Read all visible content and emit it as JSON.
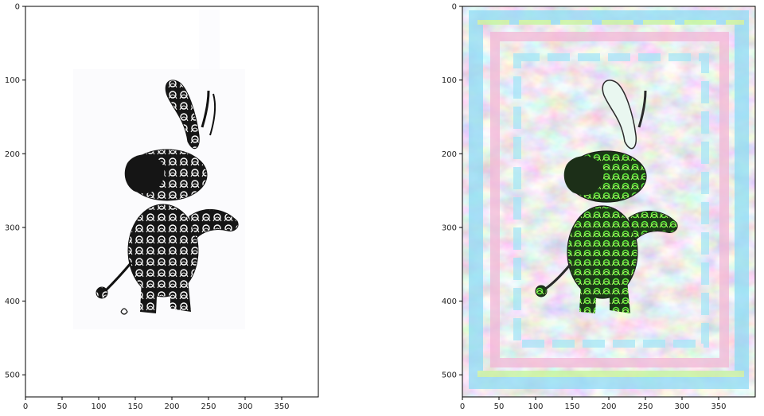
{
  "chart_data": [
    {
      "type": "image",
      "title": "",
      "xlabel": "",
      "ylabel": "",
      "xlim": [
        0,
        400
      ],
      "ylim": [
        530,
        0
      ],
      "xticks": [
        0,
        50,
        100,
        150,
        200,
        250,
        300,
        350
      ],
      "yticks": [
        0,
        100,
        200,
        300,
        400,
        500
      ],
      "content": "black and white calligraphic elephant on white background",
      "image_region": {
        "x": [
          65,
          300
        ],
        "y": [
          85,
          440
        ]
      }
    },
    {
      "type": "image",
      "title": "",
      "xlabel": "",
      "ylabel": "",
      "xlim": [
        0,
        400
      ],
      "ylim": [
        530,
        0
      ],
      "xticks": [
        0,
        50,
        100,
        150,
        200,
        250,
        300,
        350
      ],
      "yticks": [
        0,
        100,
        200,
        300,
        400,
        500
      ],
      "content": "style-transferred psychedelic elephant with pastel pink, cyan and green texture"
    }
  ],
  "colors": {
    "axis": "#000000",
    "elephant_ink": "#111111",
    "elephant_green": "#3fbf2a",
    "pastel_pink": "#f2b7d6",
    "pastel_cyan": "#8fdcf5",
    "pastel_green": "#bff59a",
    "pastel_lilac": "#d9c6f2"
  }
}
